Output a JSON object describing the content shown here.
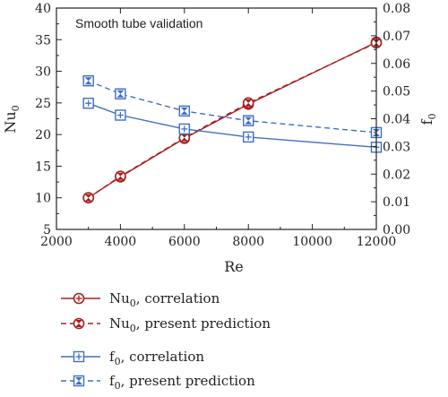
{
  "chart_data": {
    "type": "line",
    "annotation": "Smooth tube validation",
    "xlabel": "Re",
    "ylabel_left": {
      "main": "Nu",
      "sub": "0"
    },
    "ylabel_right": {
      "main": "f",
      "sub": "0"
    },
    "xlim": [
      2000,
      12000
    ],
    "ylim_left": [
      5,
      40
    ],
    "ylim_right": [
      0.0,
      0.08
    ],
    "x_ticks": [
      "2000",
      "4000",
      "6000",
      "8000",
      "10000",
      "12000"
    ],
    "y_left_ticks": [
      "5",
      "10",
      "15",
      "20",
      "25",
      "30",
      "35",
      "40"
    ],
    "y_right_ticks": [
      "0.00",
      "0.01",
      "0.02",
      "0.03",
      "0.04",
      "0.05",
      "0.06",
      "0.07",
      "0.08"
    ],
    "x": [
      3000,
      4000,
      6000,
      8000,
      12000
    ],
    "series": [
      {
        "legend": {
          "main": "Nu",
          "sub": "0",
          "rest": ", correlation"
        },
        "axis": "left",
        "color": "#a52020",
        "dash": false,
        "marker": "circle-plus",
        "values": [
          10.0,
          13.3,
          19.4,
          24.8,
          34.6
        ]
      },
      {
        "legend": {
          "main": "Nu",
          "sub": "0",
          "rest": ", present prediction"
        },
        "axis": "left",
        "color": "#a52020",
        "dash": true,
        "marker": "circle-hourglass",
        "values": [
          10.0,
          13.4,
          19.5,
          25.0,
          34.5
        ]
      },
      {
        "legend": {
          "main": "f",
          "sub": "0",
          "rest": ", correlation"
        },
        "axis": "right",
        "color": "#3f6fc0",
        "dash": false,
        "marker": "square-plus",
        "values": [
          0.0456,
          0.0413,
          0.0363,
          0.0334,
          0.0297
        ]
      },
      {
        "legend": {
          "main": "f",
          "sub": "0",
          "rest": ", present prediction"
        },
        "axis": "right",
        "color": "#3f6fc0",
        "dash": true,
        "marker": "square-hourglass",
        "values": [
          0.0537,
          0.049,
          0.0428,
          0.0393,
          0.035
        ]
      }
    ],
    "grid": false,
    "legend_position": "below"
  }
}
